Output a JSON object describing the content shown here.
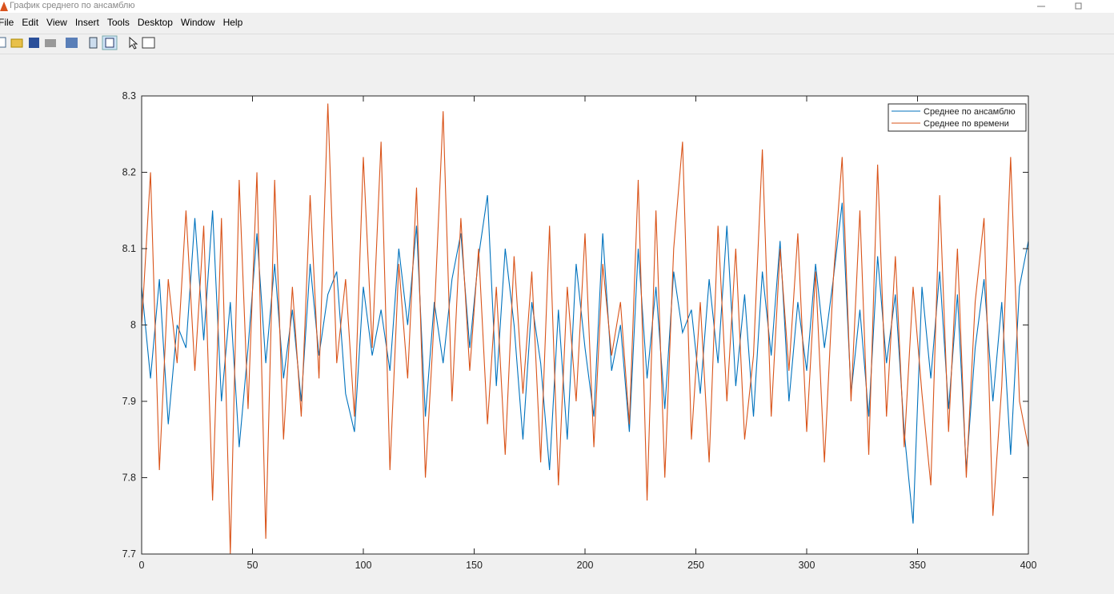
{
  "window": {
    "title": "График среднего по ансамблю"
  },
  "menu": [
    "File",
    "Edit",
    "View",
    "Insert",
    "Tools",
    "Desktop",
    "Window",
    "Help"
  ],
  "chart_data": {
    "type": "line",
    "x": [
      0,
      4,
      8,
      12,
      16,
      20,
      24,
      28,
      32,
      36,
      40,
      44,
      48,
      52,
      56,
      60,
      64,
      68,
      72,
      76,
      80,
      84,
      88,
      92,
      96,
      100,
      104,
      108,
      112,
      116,
      120,
      124,
      128,
      132,
      136,
      140,
      144,
      148,
      152,
      156,
      160,
      164,
      168,
      172,
      176,
      180,
      184,
      188,
      192,
      196,
      200,
      204,
      208,
      212,
      216,
      220,
      224,
      228,
      232,
      236,
      240,
      244,
      248,
      252,
      256,
      260,
      264,
      268,
      272,
      276,
      280,
      284,
      288,
      292,
      296,
      300,
      304,
      308,
      312,
      316,
      320,
      324,
      328,
      332,
      336,
      340,
      344,
      348,
      352,
      356,
      360,
      364,
      368,
      372,
      376,
      380,
      384,
      388,
      392,
      396,
      400
    ],
    "series": [
      {
        "name": "Среднее по ансамблю",
        "color": "#0072bd",
        "values": [
          8.05,
          7.93,
          8.06,
          7.87,
          8.0,
          7.97,
          8.14,
          7.98,
          8.15,
          7.9,
          8.03,
          7.84,
          7.97,
          8.12,
          7.95,
          8.08,
          7.93,
          8.02,
          7.9,
          8.08,
          7.96,
          8.04,
          8.07,
          7.91,
          7.86,
          8.05,
          7.96,
          8.02,
          7.94,
          8.1,
          8.0,
          8.13,
          7.88,
          8.03,
          7.95,
          8.06,
          8.12,
          7.97,
          8.09,
          8.17,
          7.92,
          8.1,
          8.0,
          7.85,
          8.03,
          7.95,
          7.81,
          8.02,
          7.85,
          8.08,
          7.97,
          7.88,
          8.12,
          7.94,
          8.0,
          7.86,
          8.1,
          7.93,
          8.05,
          7.89,
          8.07,
          7.99,
          8.02,
          7.91,
          8.06,
          7.95,
          8.13,
          7.92,
          8.04,
          7.88,
          8.07,
          7.96,
          8.11,
          7.9,
          8.03,
          7.94,
          8.08,
          7.97,
          8.06,
          8.16,
          7.91,
          8.02,
          7.88,
          8.09,
          7.95,
          8.04,
          7.86,
          7.74,
          8.05,
          7.93,
          8.07,
          7.89,
          8.04,
          7.81,
          7.97,
          8.06,
          7.9,
          8.03,
          7.83,
          8.05,
          8.11
        ]
      },
      {
        "name": "Среднее по времени",
        "color": "#d95319",
        "values": [
          8.0,
          8.2,
          7.81,
          8.06,
          7.95,
          8.15,
          7.94,
          8.13,
          7.77,
          8.14,
          7.7,
          8.19,
          7.89,
          8.2,
          7.72,
          8.19,
          7.85,
          8.05,
          7.88,
          8.17,
          7.93,
          8.29,
          7.95,
          8.06,
          7.88,
          8.22,
          7.97,
          8.24,
          7.81,
          8.08,
          7.93,
          8.18,
          7.8,
          8.01,
          8.28,
          7.9,
          8.14,
          7.94,
          8.1,
          7.87,
          8.05,
          7.83,
          8.09,
          7.91,
          8.07,
          7.82,
          8.13,
          7.79,
          8.05,
          7.9,
          8.12,
          7.84,
          8.08,
          7.96,
          8.03,
          7.87,
          8.19,
          7.77,
          8.15,
          7.8,
          8.1,
          8.24,
          7.85,
          8.03,
          7.82,
          8.13,
          7.9,
          8.1,
          7.85,
          7.96,
          8.23,
          7.88,
          8.1,
          7.94,
          8.12,
          7.86,
          8.07,
          7.82,
          8.06,
          8.22,
          7.9,
          8.15,
          7.83,
          8.21,
          7.88,
          8.09,
          7.84,
          8.05,
          7.91,
          7.79,
          8.17,
          7.86,
          8.1,
          7.8,
          8.03,
          8.14,
          7.75,
          7.92,
          8.22,
          7.9,
          7.84
        ]
      }
    ],
    "xlim": [
      0,
      400
    ],
    "xticks": [
      0,
      50,
      100,
      150,
      200,
      250,
      300,
      350,
      400
    ],
    "ylim": [
      7.7,
      8.3
    ],
    "yticks": [
      7.7,
      7.8,
      7.9,
      8,
      8.1,
      8.2,
      8.3
    ],
    "grid": false,
    "legend": "top-right"
  }
}
